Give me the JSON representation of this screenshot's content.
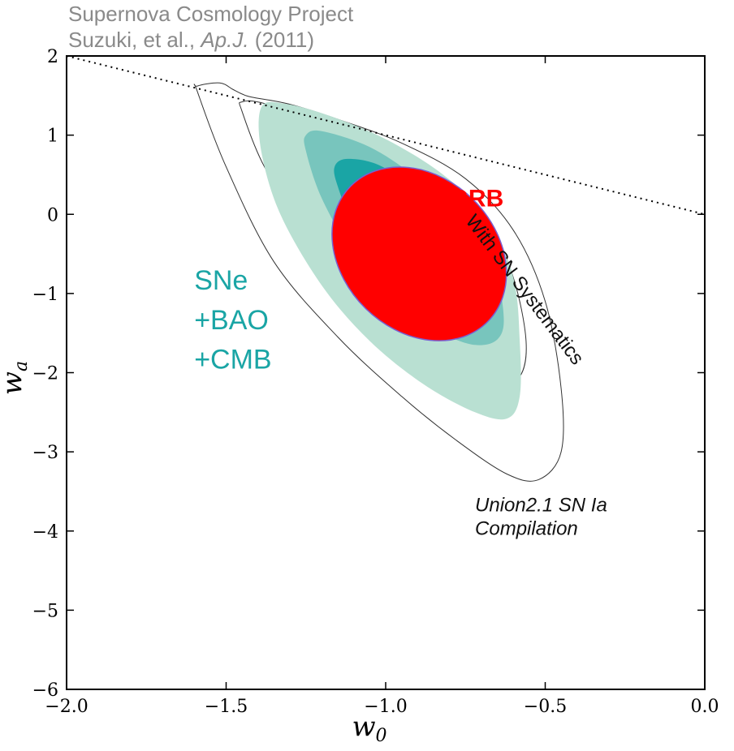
{
  "header": {
    "line1": "Supernova Cosmology Project",
    "line2_prefix": "Suzuki, et al., ",
    "line2_journal": "Ap.J.",
    "line2_suffix": " (2011)"
  },
  "chart_data": {
    "type": "contour",
    "title": "Supernova Cosmology Project — Suzuki, et al., Ap.J. (2011)",
    "xlabel": "w",
    "xlabel_sub": "0",
    "ylabel": "w",
    "ylabel_sub": "a",
    "xlim": [
      -2.0,
      0.0
    ],
    "ylim": [
      -6,
      2
    ],
    "xticks": [
      -2.0,
      -1.5,
      -1.0,
      -0.5,
      0.0
    ],
    "xtick_labels": [
      "−2.0",
      "−1.5",
      "−1.0",
      "−0.5",
      "0.0"
    ],
    "yticks": [
      -6,
      -5,
      -4,
      -3,
      -2,
      -1,
      0,
      1,
      2
    ],
    "ytick_labels": [
      "−6",
      "−5",
      "−4",
      "−3",
      "−2",
      "−1",
      "0",
      "1",
      "2"
    ],
    "boundary_line": {
      "style": "dotted",
      "points": [
        [
          -2.0,
          2.0
        ],
        [
          0.0,
          0.0
        ]
      ]
    },
    "contours": [
      {
        "name": "Union2.1 SN Ia Compilation (With SN Systematics) 95%",
        "style": "outline",
        "color": "#333333",
        "points": [
          [
            -1.59,
            1.62
          ],
          [
            -1.52,
            1.66
          ],
          [
            -1.48,
            1.58
          ],
          [
            -1.45,
            1.52
          ],
          [
            -1.42,
            1.48
          ],
          [
            -1.3,
            1.39
          ],
          [
            -1.15,
            1.2
          ],
          [
            -0.95,
            0.9
          ],
          [
            -0.75,
            0.45
          ],
          [
            -0.6,
            -0.2
          ],
          [
            -0.5,
            -1.1
          ],
          [
            -0.45,
            -2.2
          ],
          [
            -0.45,
            -3.0
          ],
          [
            -0.52,
            -3.35
          ],
          [
            -0.62,
            -3.28
          ],
          [
            -0.78,
            -2.85
          ],
          [
            -0.95,
            -2.3
          ],
          [
            -1.15,
            -1.55
          ],
          [
            -1.35,
            -0.6
          ],
          [
            -1.5,
            0.6
          ],
          [
            -1.59,
            1.55
          ]
        ]
      },
      {
        "name": "Union2.1 SN Ia Compilation (With SN Systematics) 68%",
        "style": "outline",
        "color": "#333333",
        "points": [
          [
            -1.45,
            1.42
          ],
          [
            -1.38,
            1.4
          ],
          [
            -1.2,
            1.15
          ],
          [
            -1.0,
            0.85
          ],
          [
            -0.82,
            0.45
          ],
          [
            -0.68,
            -0.1
          ],
          [
            -0.6,
            -0.8
          ],
          [
            -0.56,
            -1.6
          ],
          [
            -0.58,
            -2.05
          ],
          [
            -0.65,
            -2.12
          ],
          [
            -0.76,
            -1.9
          ],
          [
            -0.92,
            -1.45
          ],
          [
            -1.08,
            -0.95
          ],
          [
            -1.25,
            -0.2
          ],
          [
            -1.38,
            0.6
          ],
          [
            -1.45,
            1.3
          ]
        ]
      },
      {
        "name": "SNe+BAO+CMB 95%",
        "style": "fill",
        "color": "#b9e0d2",
        "points": [
          [
            -1.39,
            1.35
          ],
          [
            -1.32,
            1.4
          ],
          [
            -1.18,
            1.25
          ],
          [
            -1.0,
            0.95
          ],
          [
            -0.82,
            0.5
          ],
          [
            -0.68,
            -0.05
          ],
          [
            -0.6,
            -0.8
          ],
          [
            -0.58,
            -1.6
          ],
          [
            -0.58,
            -2.3
          ],
          [
            -0.62,
            -2.58
          ],
          [
            -0.72,
            -2.5
          ],
          [
            -0.88,
            -2.15
          ],
          [
            -1.05,
            -1.6
          ],
          [
            -1.2,
            -0.9
          ],
          [
            -1.33,
            0.0
          ],
          [
            -1.39,
            0.8
          ]
        ]
      },
      {
        "name": "SNe+BAO+CMB 68%",
        "style": "fill",
        "color": "#78c5bd",
        "points": [
          [
            -1.25,
            1.0
          ],
          [
            -1.2,
            1.05
          ],
          [
            -1.05,
            0.85
          ],
          [
            -0.9,
            0.45
          ],
          [
            -0.75,
            -0.1
          ],
          [
            -0.66,
            -0.7
          ],
          [
            -0.63,
            -1.3
          ],
          [
            -0.65,
            -1.58
          ],
          [
            -0.72,
            -1.65
          ],
          [
            -0.82,
            -1.5
          ],
          [
            -0.96,
            -1.1
          ],
          [
            -1.1,
            -0.5
          ],
          [
            -1.2,
            0.2
          ],
          [
            -1.25,
            0.8
          ]
        ]
      },
      {
        "name": "SNe+BAO+CMB inner",
        "style": "fill",
        "color": "#1aa5a5",
        "points": [
          [
            -1.16,
            0.6
          ],
          [
            -1.12,
            0.7
          ],
          [
            -1.02,
            0.62
          ],
          [
            -0.9,
            0.3
          ],
          [
            -0.8,
            -0.15
          ],
          [
            -0.74,
            -0.6
          ],
          [
            -0.74,
            -1.0
          ],
          [
            -0.8,
            -1.12
          ],
          [
            -0.9,
            -1.0
          ],
          [
            -1.02,
            -0.65
          ],
          [
            -1.1,
            -0.15
          ],
          [
            -1.15,
            0.35
          ]
        ]
      },
      {
        "name": "GRB",
        "style": "ellipse",
        "color": "#ff0000",
        "stroke": "#7a5fd0",
        "center": [
          -0.895,
          -0.5
        ],
        "tip_a": [
          -1.11,
          0.33
        ],
        "tip_b": [
          -0.68,
          -1.38
        ],
        "minor_halfwidth": 0.24
      }
    ],
    "annotations": [
      {
        "id": "grb",
        "text": "GRB",
        "color": "#ff0000",
        "at": [
          -0.8,
          0.1
        ]
      },
      {
        "id": "sne1",
        "text": "SNe",
        "color": "#1aa5a5",
        "at": [
          -1.6,
          -0.95
        ]
      },
      {
        "id": "sne2",
        "text": "+BAO",
        "color": "#1aa5a5",
        "at": [
          -1.6,
          -1.45
        ]
      },
      {
        "id": "sne3",
        "text": "+CMB",
        "color": "#1aa5a5",
        "at": [
          -1.6,
          -1.95
        ]
      },
      {
        "id": "syst",
        "text": "With SN Systematics",
        "color": "#111111",
        "at": [
          -0.58,
          -1.0
        ],
        "rotation_deg": 53
      },
      {
        "id": "union1",
        "text": "Union2.1 SN Ia",
        "color": "#111111",
        "at": [
          -0.72,
          -3.75
        ],
        "italic": true
      },
      {
        "id": "union2",
        "text": "Compilation",
        "color": "#111111",
        "at": [
          -0.72,
          -4.05
        ],
        "italic": true
      }
    ]
  }
}
